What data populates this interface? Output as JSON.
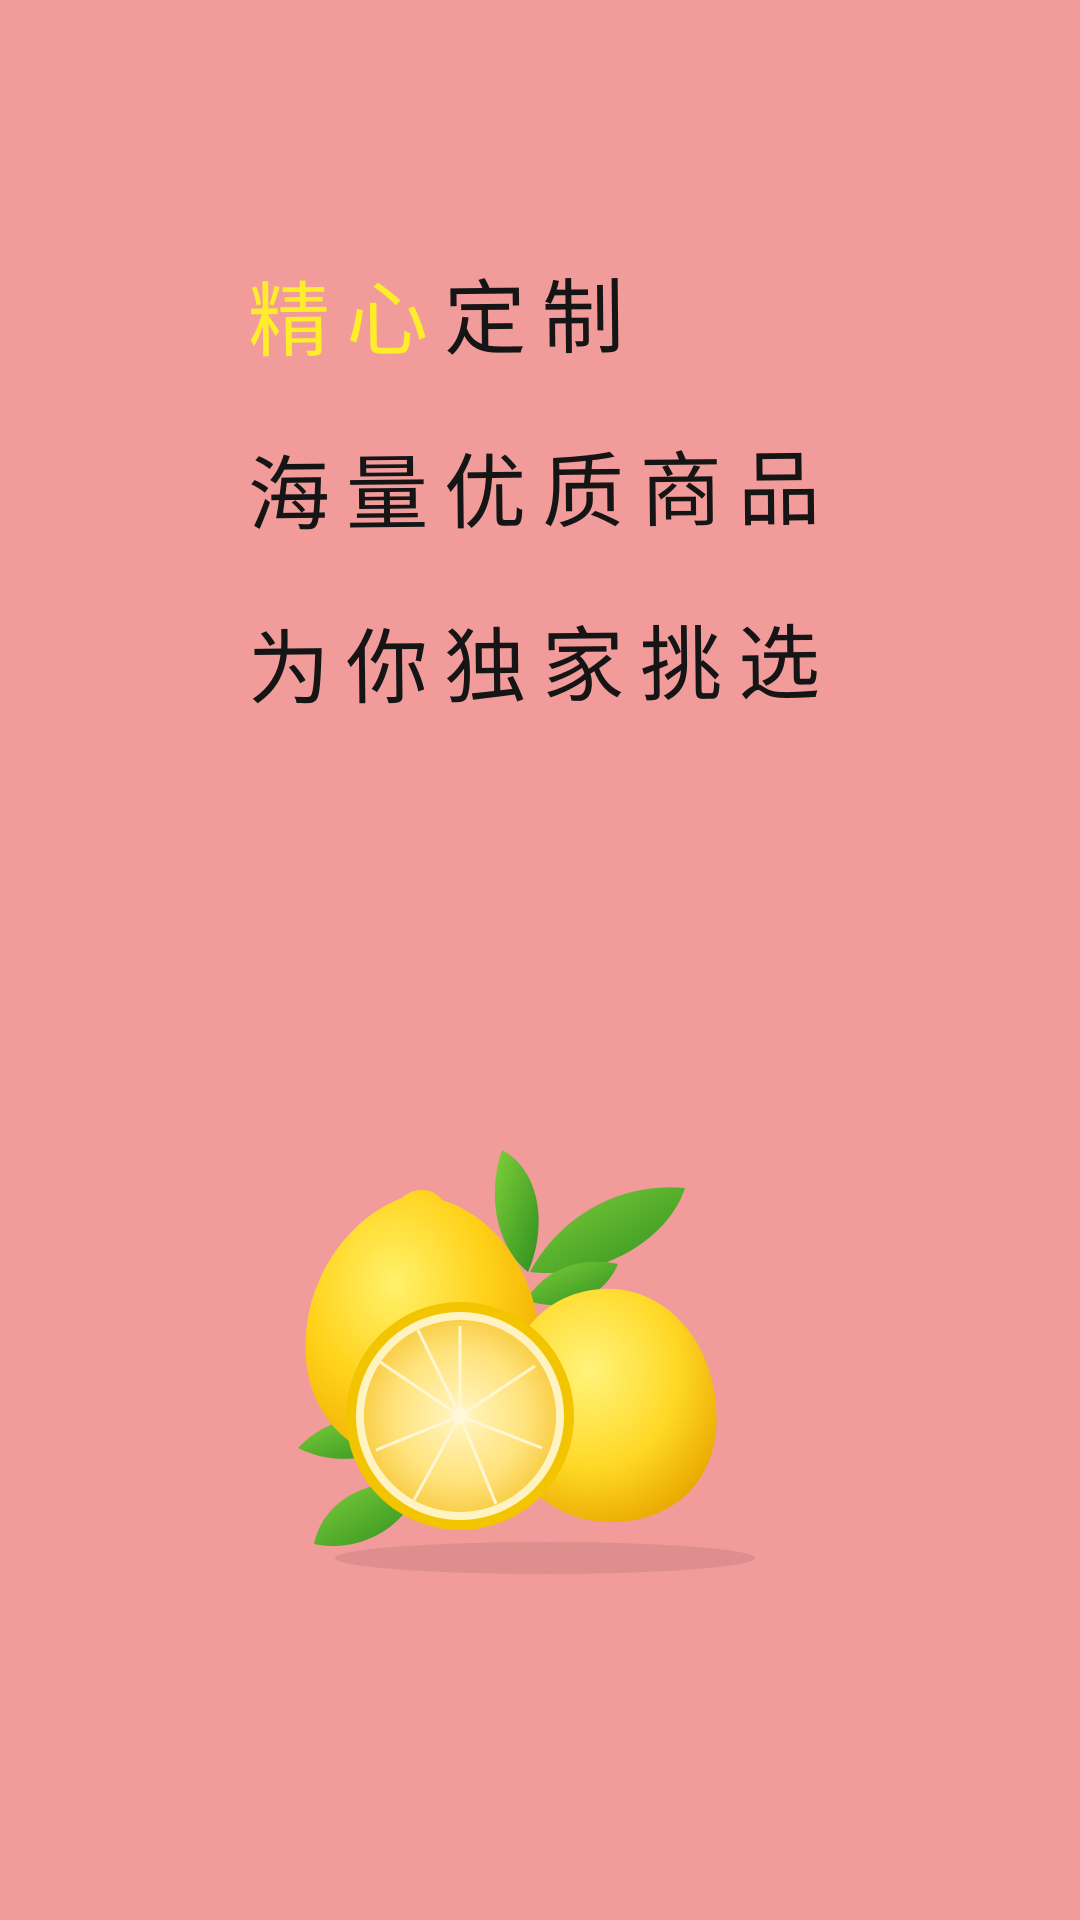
{
  "splash": {
    "line1": {
      "accent": "精心",
      "rest": "定制"
    },
    "line2": "海量优质商品",
    "line3": "为你独家挑选"
  },
  "colors": {
    "background": "#f19b9b",
    "accent_text": "#ffec2a",
    "body_text": "#151515"
  },
  "illustration": "lemons-with-leaves"
}
